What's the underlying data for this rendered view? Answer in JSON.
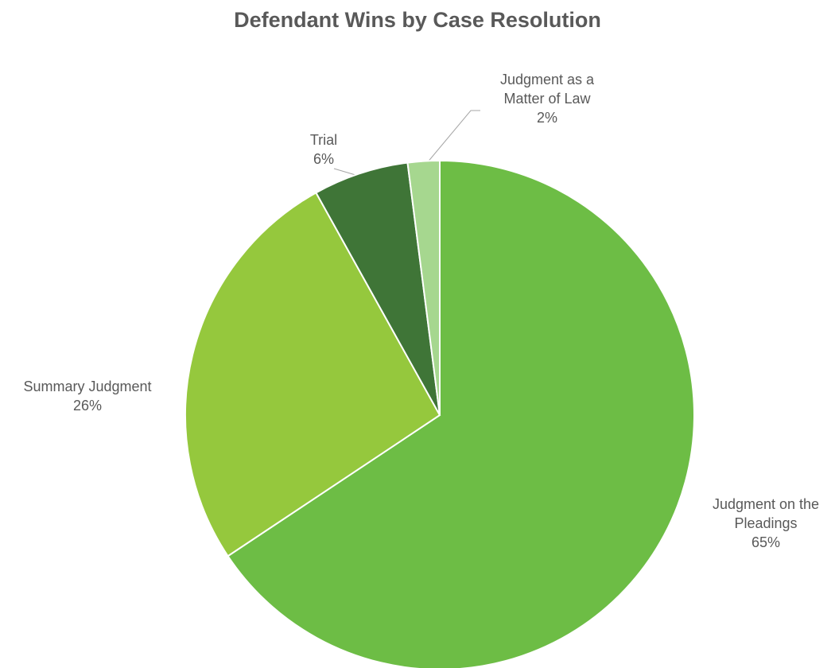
{
  "chart_data": {
    "type": "pie",
    "title": "Defendant Wins by Case Resolution",
    "categories": [
      "Judgment on the Pleadings",
      "Summary Judgment",
      "Trial",
      "Judgment as a Matter of Law"
    ],
    "values": [
      65,
      26,
      6,
      2
    ],
    "value_labels": [
      "65%",
      "26%",
      "6%",
      "2%"
    ],
    "colors": [
      "#6dbd45",
      "#95c83d",
      "#3f7537",
      "#a6d78f"
    ]
  }
}
